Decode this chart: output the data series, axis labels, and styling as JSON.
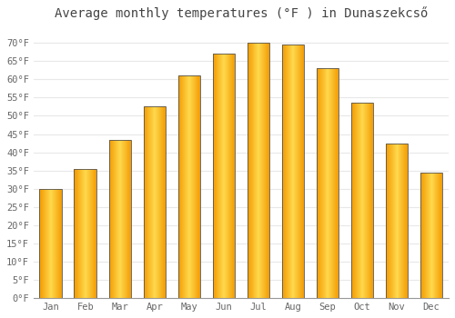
{
  "title": "Average monthly temperatures (°F ) in Dunaszekcső",
  "months": [
    "Jan",
    "Feb",
    "Mar",
    "Apr",
    "May",
    "Jun",
    "Jul",
    "Aug",
    "Sep",
    "Oct",
    "Nov",
    "Dec"
  ],
  "values": [
    30,
    35.5,
    43.5,
    52.5,
    61,
    67,
    70,
    69.5,
    63,
    53.5,
    42.5,
    34.5
  ],
  "bar_color_main": "#FFA500",
  "bar_color_light": "#FFD060",
  "bar_color_dark": "#E08000",
  "bar_edge_color": "#555555",
  "background_color": "#FFFFFF",
  "grid_color": "#E8E8E8",
  "text_color": "#666666",
  "title_color": "#444444",
  "ylim": [
    0,
    75
  ],
  "yticks": [
    0,
    5,
    10,
    15,
    20,
    25,
    30,
    35,
    40,
    45,
    50,
    55,
    60,
    65,
    70
  ],
  "title_fontsize": 10,
  "tick_fontsize": 7.5,
  "bar_width": 0.65
}
